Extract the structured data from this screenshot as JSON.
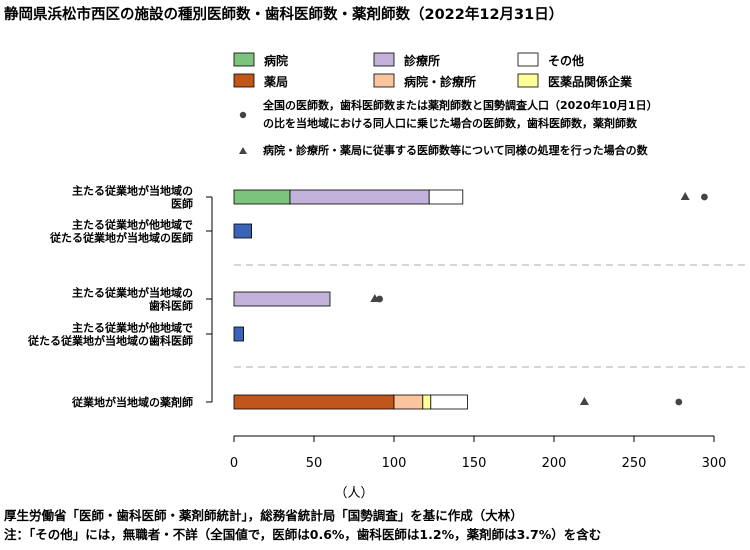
{
  "chart_data": {
    "type": "bar",
    "title": "静岡県浜松市西区の施設の種別医師数・歯科医師数・薬剤師数（2022年12月31日）",
    "xlabel": "（人）",
    "xlim": [
      0,
      300
    ],
    "xticks": [
      "0",
      "50",
      "100",
      "150",
      "200",
      "250",
      "300"
    ],
    "legend_position": "top",
    "legend": [
      {
        "key": "hospital",
        "label": "病院",
        "color": "#7cc47c"
      },
      {
        "key": "clinic",
        "label": "診療所",
        "color": "#c3b3db"
      },
      {
        "key": "other",
        "label": "その他",
        "color": "#ffffff"
      },
      {
        "key": "pharmacy",
        "label": "薬局",
        "color": "#c0561a"
      },
      {
        "key": "hosp_clinic",
        "label": "病院・診療所",
        "color": "#f9c49e"
      },
      {
        "key": "pharma_company",
        "label": "医薬品関係企業",
        "color": "#ffff99"
      }
    ],
    "marker_legend": [
      {
        "shape": "circle",
        "lines": [
          "全国の医師数，歯科医師数または薬剤師数と国勢調査人口（2020年10月1日）",
          "の比を当地域における同人口に乗じた場合の医師数，歯科医師数，薬剤師数"
        ]
      },
      {
        "shape": "triangle",
        "lines": [
          "病院・診療所・薬局に従事する医師数等について同様の処理を行った場合の数"
        ]
      }
    ],
    "rows": [
      {
        "label": [
          "主たる従業地が当地域の",
          "医師"
        ],
        "segments": [
          {
            "key": "hospital",
            "value": 35
          },
          {
            "key": "clinic",
            "value": 87
          },
          {
            "key": "other",
            "value": 21
          }
        ],
        "circle": 294,
        "triangle": 282
      },
      {
        "label": [
          "主たる従業地が他地域で",
          "従たる従業地が当地域の医師"
        ],
        "segments": [
          {
            "key": "single_blue",
            "value": 11,
            "color": "#3a64b8"
          }
        ]
      },
      {
        "label": [
          "主たる従業地が当地域の",
          "歯科医師"
        ],
        "segments": [
          {
            "key": "clinic",
            "value": 60
          }
        ],
        "circle": 91,
        "triangle": 88
      },
      {
        "label": [
          "主たる従業地が他地域で",
          "従たる従業地が当地域の歯科医師"
        ],
        "segments": [
          {
            "key": "single_blue",
            "value": 6,
            "color": "#3a64b8"
          }
        ]
      },
      {
        "label": [
          "従業地が当地域の薬剤師"
        ],
        "segments": [
          {
            "key": "pharmacy",
            "value": 100
          },
          {
            "key": "hosp_clinic",
            "value": 18
          },
          {
            "key": "pharma_company",
            "value": 5
          },
          {
            "key": "other",
            "value": 23
          }
        ],
        "circle": 278,
        "triangle": 219
      }
    ]
  },
  "notes": {
    "source": "厚生労働省「医師・歯科医師・薬剤師統計」，総務省統計局「国勢調査」を基に作成（大林）",
    "other": "注：「その他」には，無職者・不詳（全国値で，医師は0.6%，歯科医師は1.2%，薬剤師は3.7%）を含む"
  }
}
